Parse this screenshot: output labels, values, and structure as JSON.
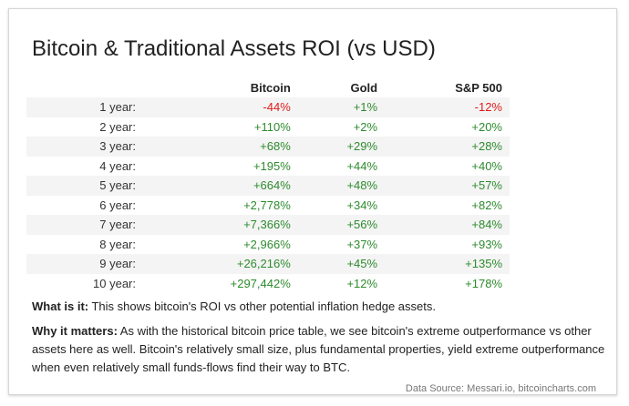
{
  "title": "Bitcoin & Traditional Assets ROI (vs USD)",
  "table": {
    "columns": [
      "",
      "Bitcoin",
      "Gold",
      "S&P 500"
    ],
    "rows": [
      {
        "period": "1 year:",
        "bitcoin": "-44%",
        "gold": "+1%",
        "sp500": "-12%"
      },
      {
        "period": "2 year:",
        "bitcoin": "+110%",
        "gold": "+2%",
        "sp500": "+20%"
      },
      {
        "period": "3 year:",
        "bitcoin": "+68%",
        "gold": "+29%",
        "sp500": "+28%"
      },
      {
        "period": "4 year:",
        "bitcoin": "+195%",
        "gold": "+44%",
        "sp500": "+40%"
      },
      {
        "period": "5 year:",
        "bitcoin": "+664%",
        "gold": "+48%",
        "sp500": "+57%"
      },
      {
        "period": "6 year:",
        "bitcoin": "+2,778%",
        "gold": "+34%",
        "sp500": "+82%"
      },
      {
        "period": "7 year:",
        "bitcoin": "+7,366%",
        "gold": "+56%",
        "sp500": "+84%"
      },
      {
        "period": "8 year:",
        "bitcoin": "+2,966%",
        "gold": "+37%",
        "sp500": "+93%"
      },
      {
        "period": "9 year:",
        "bitcoin": "+26,216%",
        "gold": "+45%",
        "sp500": "+135%"
      },
      {
        "period": "10 year:",
        "bitcoin": "+297,442%",
        "gold": "+12%",
        "sp500": "+178%"
      }
    ]
  },
  "notes": {
    "what_label": "What is it:",
    "what_text": " This shows bitcoin's ROI vs other potential inflation hedge assets.",
    "why_label": "Why it matters:",
    "why_text": " As with the historical bitcoin price table, we see bitcoin's extreme outperformance vs other assets here as well. Bitcoin's relatively small size, plus fundamental properties, yield extreme outperformance when even relatively small funds-flows find their way to BTC."
  },
  "source": "Data Source: Messari.io, bitcoincharts.com",
  "colors": {
    "positive": "#2e8b2e",
    "negative": "#e0191a",
    "stripe": "#f4f4f4"
  }
}
